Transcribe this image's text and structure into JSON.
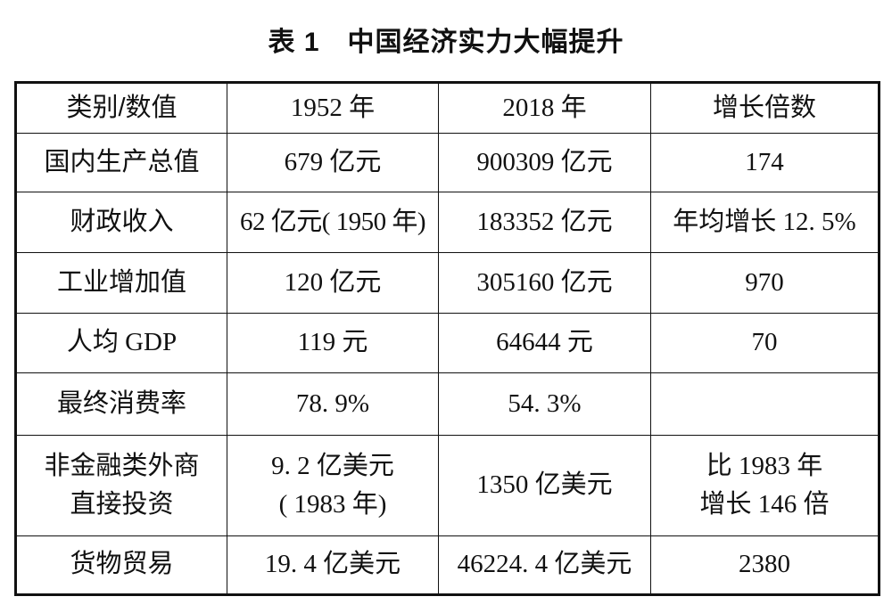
{
  "caption": "表 1　中国经济实力大幅提升",
  "table": {
    "headers": [
      "类别/数值",
      "1952 年",
      "2018 年",
      "增长倍数"
    ],
    "rows": [
      {
        "label": "国内生产总值",
        "y1952": "679 亿元",
        "y2018": "900309 亿元",
        "growth": "174"
      },
      {
        "label": "财政收入",
        "y1952": "62 亿元( 1950 年)",
        "y2018": "183352 亿元",
        "growth": "年均增长 12. 5%"
      },
      {
        "label": "工业增加值",
        "y1952": "120 亿元",
        "y2018": "305160 亿元",
        "growth": "970"
      },
      {
        "label": "人均 GDP",
        "y1952": "119 元",
        "y2018": "64644 元",
        "growth": "70"
      },
      {
        "label": "最终消费率",
        "y1952": "78. 9%",
        "y2018": "54. 3%",
        "growth": ""
      },
      {
        "label": "非金融类外商\n直接投资",
        "y1952": "9. 2 亿美元\n( 1983 年)",
        "y2018": "1350 亿美元",
        "growth": "比 1983 年\n增长 146 倍"
      },
      {
        "label": "货物贸易",
        "y1952": "19. 4 亿美元",
        "y2018": "46224. 4 亿美元",
        "growth": "2380"
      }
    ]
  },
  "colors": {
    "text": "#111111",
    "border": "#111111",
    "background": "#ffffff"
  }
}
